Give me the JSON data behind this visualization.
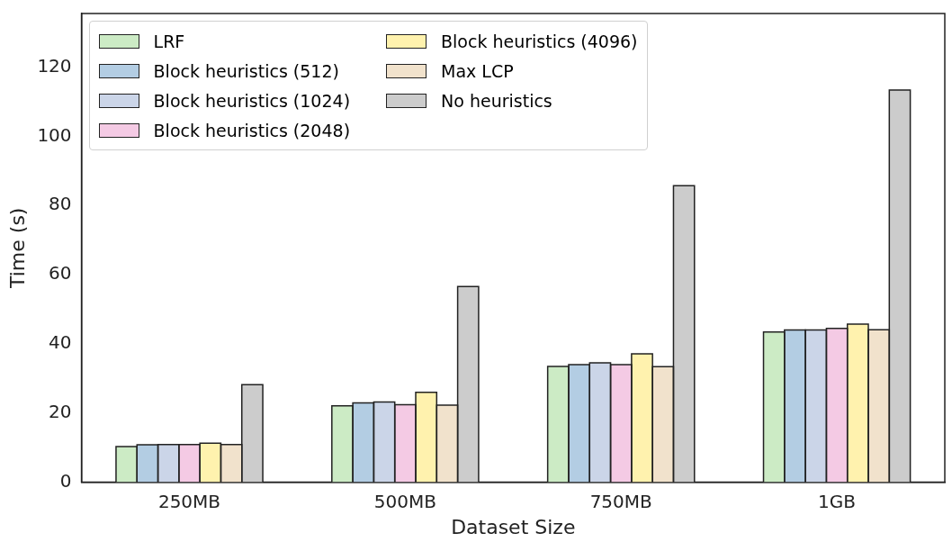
{
  "chart_data": {
    "type": "bar",
    "xlabel": "Dataset Size",
    "ylabel": "Time (s)",
    "categories": [
      "250MB",
      "500MB",
      "750MB",
      "1GB"
    ],
    "series": [
      {
        "name": "LRF",
        "color": "#ccebc5",
        "values": [
          10.3,
          22.1,
          33.5,
          43.4
        ]
      },
      {
        "name": "Block heuristics (512)",
        "color": "#b3cde3",
        "values": [
          10.8,
          22.9,
          34.0,
          44.0
        ]
      },
      {
        "name": "Block heuristics (1024)",
        "color": "#cbd5e8",
        "values": [
          10.9,
          23.2,
          34.5,
          44.0
        ]
      },
      {
        "name": "Block heuristics (2048)",
        "color": "#f4cae4",
        "values": [
          10.9,
          22.4,
          34.0,
          44.5
        ]
      },
      {
        "name": "Block heuristics (4096)",
        "color": "#fff2ae",
        "values": [
          11.3,
          26.0,
          37.1,
          45.7
        ]
      },
      {
        "name": "Max LCP",
        "color": "#f1e2cc",
        "values": [
          10.9,
          22.3,
          33.4,
          44.1
        ]
      },
      {
        "name": "No heuristics",
        "color": "#cccccc",
        "values": [
          28.2,
          56.6,
          85.7,
          113.4
        ]
      }
    ],
    "ylim": [
      0,
      135.5
    ],
    "yticks": [
      0,
      20,
      40,
      60,
      80,
      100,
      120
    ],
    "grid": false,
    "legend": "top left"
  }
}
